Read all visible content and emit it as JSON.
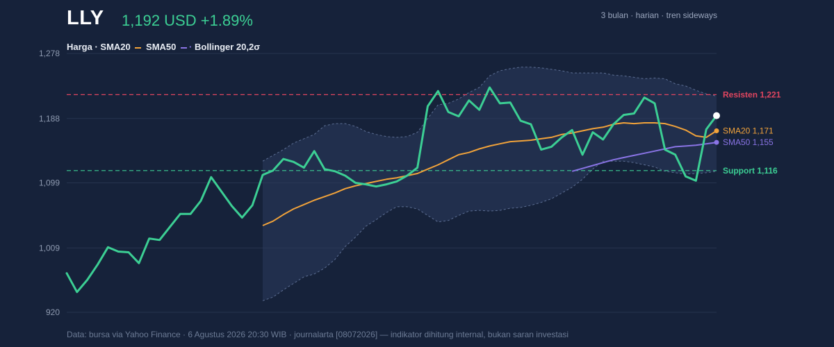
{
  "header": {
    "ticker": "LLY",
    "price": "1,192 USD +1.89%",
    "period": "3 bulan · harian · tren sideways"
  },
  "legend": {
    "price": "Harga ·",
    "sma20": "SMA20",
    "sma50": "SMA50",
    "bollinger": "Bollinger 20,2σ"
  },
  "footer": "Data: bursa via Yahoo Finance · 6 Agustus 2026 20:30 WIB · journalarta [08072026] — indikator dihitung internal, bukan saran investasi",
  "colors": {
    "background": "#16223a",
    "price": "#3ccf94",
    "sma20": "#f2a33a",
    "sma50": "#8a74e6",
    "band": "#2b3b5c",
    "resistance": "#e0455f",
    "support": "#3ccf94",
    "grid": "#26344f"
  },
  "chart_data": {
    "type": "line",
    "ylim": [
      920,
      1278
    ],
    "yticks": [
      "1,278",
      "1,188",
      "1,099",
      "1,009",
      "920"
    ],
    "ytick_values": [
      1278,
      1188,
      1099,
      1009,
      920
    ],
    "series": [
      {
        "name": "Harga",
        "values": [
          974,
          948,
          965,
          986,
          1010,
          1004,
          1003,
          988,
          1022,
          1020,
          1038,
          1056,
          1056,
          1074,
          1107,
          1087,
          1067,
          1051,
          1068,
          1110,
          1116,
          1132,
          1128,
          1120,
          1143,
          1118,
          1115,
          1109,
          1099,
          1097,
          1094,
          1097,
          1101,
          1109,
          1120,
          1205,
          1226,
          1197,
          1191,
          1213,
          1200,
          1231,
          1209,
          1210,
          1185,
          1180,
          1145,
          1149,
          1162,
          1172,
          1138,
          1169,
          1159,
          1180,
          1193,
          1195,
          1217,
          1209,
          1145,
          1138,
          1108,
          1102,
          1173,
          1192
        ]
      },
      {
        "name": "SMA20",
        "values": [
          1040,
          1046,
          1055,
          1063,
          1069,
          1075,
          1080,
          1085,
          1091,
          1095,
          1098,
          1101,
          1104,
          1106,
          1109,
          1112,
          1118,
          1124,
          1131,
          1138,
          1141,
          1146,
          1150,
          1153,
          1156,
          1157,
          1158,
          1160,
          1162,
          1166,
          1168,
          1171,
          1174,
          1176,
          1180,
          1182,
          1181,
          1182,
          1182,
          1181,
          1177,
          1172,
          1164,
          1162,
          1171
        ]
      },
      {
        "name": "SMA50",
        "values": [
          1115,
          1119,
          1123,
          1127,
          1131,
          1134,
          1137,
          1140,
          1143,
          1146,
          1149,
          1150,
          1151,
          1153,
          1155
        ]
      },
      {
        "name": "Bollinger 20,2σ",
        "upper": [
          1129,
          1137,
          1145,
          1154,
          1160,
          1166,
          1178,
          1181,
          1181,
          1177,
          1170,
          1166,
          1163,
          1162,
          1163,
          1169,
          1188,
          1207,
          1209,
          1215,
          1224,
          1231,
          1247,
          1254,
          1257,
          1259,
          1259,
          1258,
          1256,
          1254,
          1251,
          1251,
          1251,
          1251,
          1248,
          1247,
          1245,
          1243,
          1244,
          1243,
          1236,
          1233,
          1227,
          1222,
          1219
        ],
        "lower": [
          936,
          941,
          951,
          960,
          969,
          973,
          981,
          993,
          1011,
          1024,
          1039,
          1048,
          1058,
          1066,
          1066,
          1063,
          1054,
          1045,
          1047,
          1054,
          1060,
          1061,
          1060,
          1061,
          1064,
          1065,
          1068,
          1072,
          1077,
          1085,
          1093,
          1104,
          1118,
          1129,
          1129,
          1129,
          1127,
          1124,
          1121,
          1115,
          1113,
          1111,
          1112,
          1113,
          1115
        ]
      }
    ],
    "levels": [
      {
        "name": "Resisten",
        "label": "Resisten 1,221",
        "value": 1221
      },
      {
        "name": "Support",
        "label": "Support 1,116",
        "value": 1116
      }
    ],
    "end_labels": [
      {
        "series": "SMA20",
        "label": "SMA20 1,171"
      },
      {
        "series": "SMA50",
        "label": "SMA50 1,155"
      }
    ],
    "grid": true
  }
}
